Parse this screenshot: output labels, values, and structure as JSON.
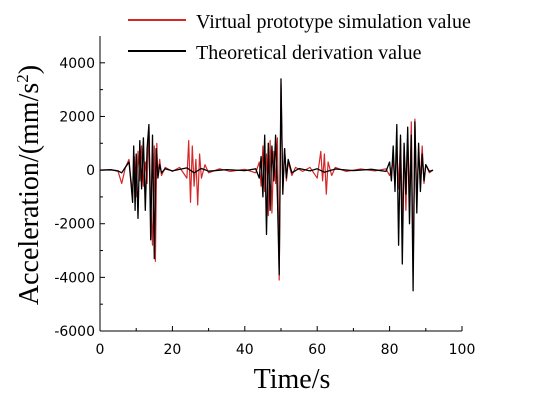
{
  "chart_data": {
    "type": "line",
    "xlabel": "Time/s",
    "ylabel": "Acceleration/(mm/s",
    "ylabel_sup": "2",
    "ylabel_close": ")",
    "xlim": [
      0,
      100
    ],
    "ylim": [
      -6000,
      5000
    ],
    "x_ticks": [
      0,
      20,
      40,
      60,
      80,
      100
    ],
    "y_ticks": [
      -6000,
      -4000,
      -2000,
      0,
      2000,
      4000
    ],
    "grid": false,
    "legend_position": "top",
    "series": [
      {
        "name": "Virtual prototype simulation value",
        "color": "#d62728",
        "points": [
          [
            0,
            0
          ],
          [
            3,
            20
          ],
          [
            5,
            -50
          ],
          [
            6,
            -500
          ],
          [
            7,
            80
          ],
          [
            8,
            400
          ],
          [
            8.5,
            -300
          ],
          [
            9,
            -800
          ],
          [
            9.5,
            500
          ],
          [
            10,
            -1000
          ],
          [
            10.5,
            700
          ],
          [
            11,
            -400
          ],
          [
            11.5,
            900
          ],
          [
            12,
            -600
          ],
          [
            12.5,
            300
          ],
          [
            13,
            -500
          ],
          [
            13.5,
            1600
          ],
          [
            14,
            -1300
          ],
          [
            14.5,
            -2800
          ],
          [
            15,
            900
          ],
          [
            15.3,
            -3400
          ],
          [
            15.7,
            1000
          ],
          [
            16,
            -200
          ],
          [
            16.5,
            400
          ],
          [
            17,
            -200
          ],
          [
            18,
            100
          ],
          [
            20,
            -50
          ],
          [
            22,
            100
          ],
          [
            24,
            -300
          ],
          [
            24.5,
            1100
          ],
          [
            25,
            -1200
          ],
          [
            25.5,
            900
          ],
          [
            26,
            -600
          ],
          [
            26.5,
            400
          ],
          [
            27,
            -1300
          ],
          [
            27.5,
            600
          ],
          [
            28,
            -300
          ],
          [
            29,
            200
          ],
          [
            30,
            -100
          ],
          [
            33,
            50
          ],
          [
            36,
            -50
          ],
          [
            40,
            30
          ],
          [
            43,
            -100
          ],
          [
            44,
            300
          ],
          [
            44.5,
            -600
          ],
          [
            45,
            900
          ],
          [
            45.5,
            -800
          ],
          [
            46,
            600
          ],
          [
            46.5,
            -1700
          ],
          [
            47,
            1100
          ],
          [
            47.5,
            -1600
          ],
          [
            48,
            700
          ],
          [
            48.5,
            -500
          ],
          [
            49,
            1200
          ],
          [
            49.5,
            -4100
          ],
          [
            50,
            3200
          ],
          [
            50.5,
            -700
          ],
          [
            51,
            800
          ],
          [
            51.5,
            -400
          ],
          [
            52,
            300
          ],
          [
            53,
            -200
          ],
          [
            54,
            100
          ],
          [
            56,
            -50
          ],
          [
            58,
            100
          ],
          [
            60,
            -300
          ],
          [
            61,
            700
          ],
          [
            61.5,
            -400
          ],
          [
            62,
            600
          ],
          [
            62.5,
            -900
          ],
          [
            63,
            300
          ],
          [
            64,
            -200
          ],
          [
            65,
            100
          ],
          [
            68,
            -50
          ],
          [
            72,
            40
          ],
          [
            76,
            -30
          ],
          [
            79,
            50
          ],
          [
            80,
            -200
          ],
          [
            81,
            300
          ],
          [
            81.5,
            -500
          ],
          [
            82,
            800
          ],
          [
            82.5,
            -700
          ],
          [
            83,
            1200
          ],
          [
            83.5,
            -1900
          ],
          [
            84,
            900
          ],
          [
            84.5,
            -1500
          ],
          [
            85,
            1300
          ],
          [
            85.5,
            -1200
          ],
          [
            86,
            1800
          ],
          [
            86.5,
            -3800
          ],
          [
            87,
            1900
          ],
          [
            87.5,
            -1100
          ],
          [
            88,
            600
          ],
          [
            88.5,
            -300
          ],
          [
            89,
            900
          ],
          [
            89.5,
            -500
          ],
          [
            90,
            200
          ],
          [
            91,
            -100
          ],
          [
            92,
            0
          ]
        ]
      },
      {
        "name": "Theoretical derivation value",
        "color": "#000000",
        "points": [
          [
            0,
            0
          ],
          [
            3,
            10
          ],
          [
            5,
            -30
          ],
          [
            6,
            -100
          ],
          [
            7,
            100
          ],
          [
            8,
            300
          ],
          [
            8.5,
            -400
          ],
          [
            9,
            -1200
          ],
          [
            9.3,
            900
          ],
          [
            9.7,
            -1500
          ],
          [
            10,
            600
          ],
          [
            10.5,
            -1800
          ],
          [
            11,
            1100
          ],
          [
            11.5,
            -700
          ],
          [
            12,
            1200
          ],
          [
            12.5,
            -1500
          ],
          [
            13,
            800
          ],
          [
            13.5,
            1700
          ],
          [
            14,
            -2600
          ],
          [
            14.5,
            1300
          ],
          [
            15,
            -3300
          ],
          [
            15.5,
            800
          ],
          [
            16,
            -300
          ],
          [
            16.5,
            200
          ],
          [
            17,
            -100
          ],
          [
            18,
            50
          ],
          [
            20,
            -30
          ],
          [
            24,
            80
          ],
          [
            26,
            -100
          ],
          [
            28,
            60
          ],
          [
            30,
            -40
          ],
          [
            35,
            20
          ],
          [
            40,
            -20
          ],
          [
            43,
            50
          ],
          [
            44,
            -300
          ],
          [
            44.5,
            500
          ],
          [
            45,
            -1000
          ],
          [
            45.5,
            1300
          ],
          [
            46,
            -2400
          ],
          [
            46.5,
            1000
          ],
          [
            47,
            -1500
          ],
          [
            47.5,
            900
          ],
          [
            48,
            -400
          ],
          [
            48.5,
            1300
          ],
          [
            49,
            -1000
          ],
          [
            49.5,
            -3900
          ],
          [
            50,
            3400
          ],
          [
            50.5,
            -900
          ],
          [
            51,
            800
          ],
          [
            51.5,
            -300
          ],
          [
            52,
            400
          ],
          [
            53,
            -100
          ],
          [
            55,
            60
          ],
          [
            58,
            -30
          ],
          [
            60,
            50
          ],
          [
            62,
            -80
          ],
          [
            65,
            40
          ],
          [
            70,
            -20
          ],
          [
            75,
            30
          ],
          [
            79,
            -50
          ],
          [
            80,
            300
          ],
          [
            80.5,
            -400
          ],
          [
            81,
            900
          ],
          [
            81.5,
            -800
          ],
          [
            82,
            1700
          ],
          [
            82.5,
            -2800
          ],
          [
            83,
            1300
          ],
          [
            83.5,
            -3500
          ],
          [
            84,
            1000
          ],
          [
            84.5,
            -900
          ],
          [
            85,
            1600
          ],
          [
            85.5,
            -2000
          ],
          [
            86,
            1300
          ],
          [
            86.5,
            -4500
          ],
          [
            87,
            1800
          ],
          [
            87.5,
            -1600
          ],
          [
            88,
            1000
          ],
          [
            88.5,
            -800
          ],
          [
            89,
            600
          ],
          [
            89.5,
            -400
          ],
          [
            90,
            200
          ],
          [
            91,
            -50
          ],
          [
            92,
            0
          ]
        ]
      }
    ]
  }
}
